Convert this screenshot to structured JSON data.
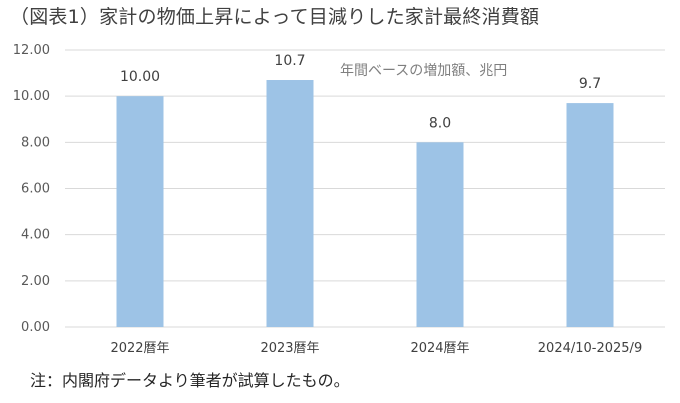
{
  "title": "（図表1）家計の物価上昇によって目減りした家計最終消費額",
  "unit_note": "年間ベースの増加額、兆円",
  "source_note": "注：内閣府データより筆者が試算したもの。",
  "chart_data": {
    "type": "bar",
    "categories": [
      "2022暦年",
      "2023暦年",
      "2024暦年",
      "2024/10-2025/9"
    ],
    "values": [
      10.0,
      10.7,
      8.0,
      9.7
    ],
    "data_labels": [
      "10.00",
      "10.7",
      "8.0",
      "9.7"
    ],
    "ylim": [
      0,
      12
    ],
    "yticks": [
      "0.00",
      "2.00",
      "4.00",
      "6.00",
      "8.00",
      "10.00",
      "12.00"
    ],
    "bar_color": "#9DC3E6",
    "grid": true
  }
}
